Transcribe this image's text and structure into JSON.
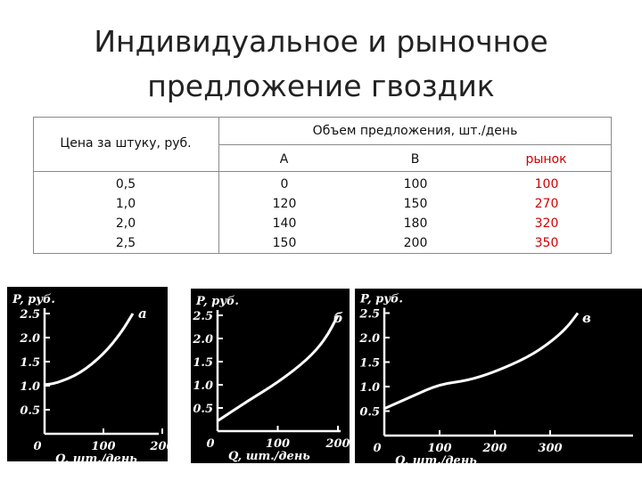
{
  "slide": {
    "title_line1": "Индивидуальное и рыночное",
    "title_line2": "предложение гвоздик"
  },
  "table": {
    "price_header": "Цена за штуку, руб.",
    "volume_header": "Объем предложения, шт./день",
    "columns": [
      "А",
      "В",
      "рынок"
    ],
    "prices": [
      "0,5",
      "1,0",
      "2,0",
      "2,5"
    ],
    "a": [
      "0",
      "120",
      "140",
      "150"
    ],
    "b": [
      "100",
      "150",
      "180",
      "200"
    ],
    "market": [
      "100",
      "270",
      "320",
      "350"
    ],
    "market_color": "#d00000"
  },
  "graphs": {
    "axis_p": "P, руб.",
    "axis_q": "Q, шт./день",
    "y_ticks": [
      "2.5",
      "2.0",
      "1.5",
      "1.0",
      "0.5"
    ],
    "origin": "0",
    "labels": [
      "а",
      "б",
      "в"
    ],
    "x_ticks_small": [
      "100",
      "200"
    ],
    "x_ticks_large": [
      "100",
      "200",
      "300"
    ]
  },
  "chart_data": [
    {
      "type": "line",
      "title": "",
      "xlabel": "Q, шт./день",
      "ylabel": "P, руб.",
      "xlim": [
        0,
        200
      ],
      "ylim": [
        0,
        2.5
      ],
      "series": [
        {
          "name": "а",
          "x": [
            0,
            20,
            60,
            100,
            130,
            150
          ],
          "y": [
            1.02,
            1.05,
            1.25,
            1.65,
            2.1,
            2.5
          ]
        }
      ]
    },
    {
      "type": "line",
      "title": "",
      "xlabel": "Q, шт./день",
      "ylabel": "P, руб.",
      "xlim": [
        0,
        200
      ],
      "ylim": [
        0,
        2.5
      ],
      "series": [
        {
          "name": "б",
          "x": [
            0,
            50,
            100,
            150,
            180,
            200
          ],
          "y": [
            0.22,
            0.65,
            1.05,
            1.55,
            2.0,
            2.5
          ]
        }
      ]
    },
    {
      "type": "line",
      "title": "",
      "xlabel": "Q, шт./день",
      "ylabel": "P, руб.",
      "xlim": [
        0,
        350
      ],
      "ylim": [
        0,
        2.5
      ],
      "series": [
        {
          "name": "в",
          "x": [
            0,
            50,
            100,
            150,
            200,
            260,
            300,
            330,
            350
          ],
          "y": [
            0.55,
            0.8,
            1.05,
            1.12,
            1.3,
            1.6,
            1.9,
            2.2,
            2.5
          ]
        }
      ]
    }
  ]
}
